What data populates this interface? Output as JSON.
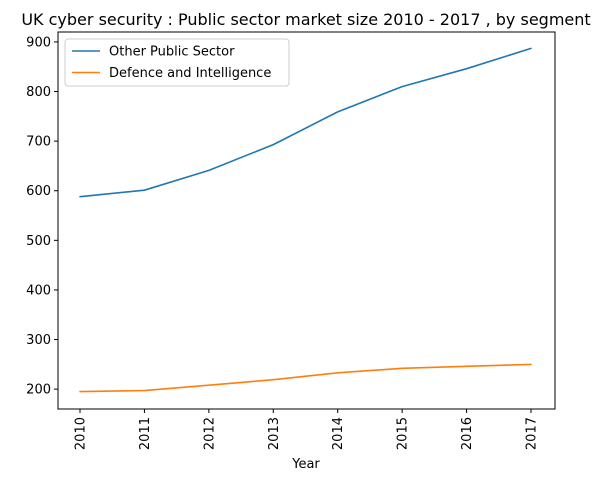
{
  "chart_data": {
    "type": "line",
    "title": "UK cyber security : Public sector market size 2010 - 2017 , by segment",
    "xlabel": "Year",
    "ylabel": "",
    "categories": [
      "2010",
      "2011",
      "2012",
      "2013",
      "2014",
      "2015",
      "2016",
      "2017"
    ],
    "ylim": [
      160,
      920
    ],
    "yticks": [
      200,
      300,
      400,
      500,
      600,
      700,
      800,
      900
    ],
    "grid": false,
    "legend_position": "top-left",
    "series": [
      {
        "name": "Other Public Sector",
        "color": "#1f77b4",
        "values": [
          588,
          601,
          641,
          693,
          759,
          810,
          846,
          887
        ]
      },
      {
        "name": "Defence and Intelligence",
        "color": "#ff7f0e",
        "values": [
          195,
          197,
          208,
          219,
          233,
          242,
          246,
          250
        ]
      }
    ]
  }
}
